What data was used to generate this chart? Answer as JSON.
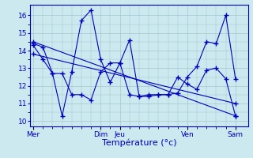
{
  "background_color": "#cce9f0",
  "grid_color": "#9abfc8",
  "line_color": "#0000bb",
  "marker": "+",
  "markersize": 4,
  "linewidth": 0.8,
  "xlabel": "Température (°c)",
  "xlabel_color": "#0000bb",
  "xlabel_fontsize": 8,
  "tick_color": "#0000bb",
  "tick_fontsize": 6.5,
  "ylim": [
    9.7,
    16.6
  ],
  "yticks": [
    10,
    11,
    12,
    13,
    14,
    15,
    16
  ],
  "xlim": [
    -0.3,
    22.3
  ],
  "day_positions": [
    0,
    7,
    9,
    16,
    21
  ],
  "day_labels": [
    "Mer",
    "Dim",
    "Jeu",
    "Ven",
    "Sam"
  ],
  "series_trend1_x": [
    0,
    21
  ],
  "series_trend1_y": [
    14.5,
    10.3
  ],
  "series_trend2_x": [
    0,
    21
  ],
  "series_trend2_y": [
    13.8,
    11.0
  ],
  "series_jagged1_x": [
    0,
    1,
    2,
    3,
    4,
    5,
    6,
    7,
    8,
    9,
    10,
    11,
    12,
    13,
    14,
    15,
    16,
    17,
    18,
    19,
    20,
    21
  ],
  "series_jagged1_y": [
    14.4,
    14.2,
    12.7,
    10.3,
    12.8,
    15.7,
    16.3,
    13.5,
    12.2,
    13.3,
    14.6,
    11.4,
    11.5,
    11.5,
    11.5,
    11.6,
    12.5,
    13.1,
    14.5,
    14.4,
    16.0,
    12.4
  ],
  "series_jagged2_x": [
    0,
    1,
    2,
    3,
    4,
    5,
    6,
    7,
    8,
    9,
    10,
    11,
    12,
    13,
    14,
    15,
    16,
    17,
    18,
    19,
    20,
    21
  ],
  "series_jagged2_y": [
    14.3,
    13.5,
    12.7,
    12.7,
    11.5,
    11.5,
    11.2,
    12.8,
    13.3,
    13.3,
    11.5,
    11.4,
    11.4,
    11.5,
    11.5,
    12.5,
    12.1,
    11.8,
    12.9,
    13.0,
    12.4,
    10.3
  ]
}
